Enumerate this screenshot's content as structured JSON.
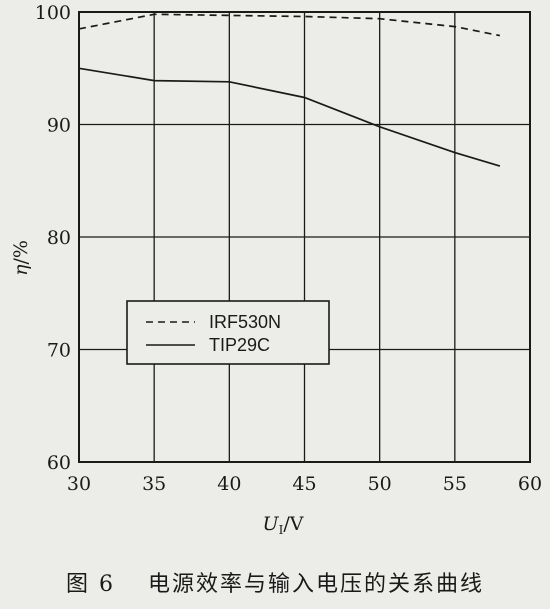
{
  "chart_data": {
    "type": "line",
    "title": "",
    "xlabel_main": "U",
    "xlabel_sub": "I",
    "xlabel_unit": "/V",
    "ylabel_main": "η",
    "ylabel_unit": "/%",
    "xlim": [
      30,
      60
    ],
    "ylim": [
      60,
      100
    ],
    "x_ticks": [
      "30",
      "35",
      "40",
      "45",
      "50",
      "55",
      "60"
    ],
    "y_ticks": [
      "60",
      "70",
      "80",
      "90",
      "100"
    ],
    "grid": true,
    "legend_position": "left-middle",
    "series": [
      {
        "name": "IRF530N",
        "style": "dashed",
        "x": [
          30,
          35,
          40,
          45,
          50,
          55,
          58
        ],
        "y": [
          98.5,
          99.8,
          99.7,
          99.6,
          99.4,
          98.7,
          97.9
        ]
      },
      {
        "name": "TIP29C",
        "style": "solid",
        "x": [
          30,
          35,
          40,
          45,
          50,
          55,
          58
        ],
        "y": [
          95.0,
          93.9,
          93.8,
          92.4,
          89.8,
          87.5,
          86.3
        ]
      }
    ]
  },
  "caption": "图 6　 电源效率与输入电压的关系曲线",
  "colors": {
    "line": "#1a1a1a",
    "background": "#ecece8"
  }
}
